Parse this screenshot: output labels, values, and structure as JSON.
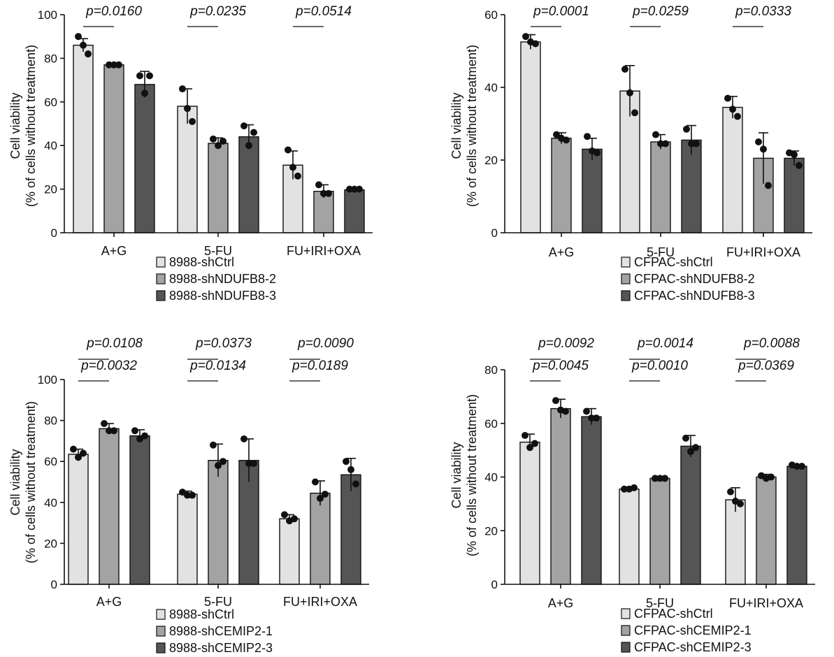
{
  "chart_data": [
    {
      "type": "bar",
      "ylabel": [
        "Cell viability",
        "(% of cells without treatment)"
      ],
      "ylim": [
        0,
        100
      ],
      "yticks": [
        0,
        20,
        40,
        60,
        80,
        100
      ],
      "categories": [
        "A+G",
        "5-FU",
        "FU+IRI+OXA"
      ],
      "series": [
        {
          "name": "8988-shCtrl",
          "color": "#e2e2e2",
          "values": [
            86,
            58,
            31
          ],
          "sd": [
            3,
            8,
            6.5
          ],
          "points": [
            [
              90,
              86,
              82
            ],
            [
              66,
              57,
              51
            ],
            [
              38,
              30,
              26
            ]
          ]
        },
        {
          "name": "8988-shNDUFB8-2",
          "color": "#a3a3a3",
          "values": [
            77,
            41,
            19
          ],
          "sd": [
            0.5,
            2.5,
            3
          ],
          "points": [
            [
              77,
              77,
              77
            ],
            [
              43,
              40,
              42
            ],
            [
              22,
              18,
              18
            ]
          ]
        },
        {
          "name": "8988-shNDUFB8-3",
          "color": "#555555",
          "values": [
            68,
            44,
            19.7
          ],
          "sd": [
            6,
            5.5,
            0.5
          ],
          "points": [
            [
              72,
              64,
              72
            ],
            [
              49,
              40,
              46
            ],
            [
              20,
              20,
              20
            ]
          ]
        }
      ],
      "annotations": [
        {
          "category": "A+G",
          "lines": [
            "p=0.0160"
          ]
        },
        {
          "category": "5-FU",
          "lines": [
            "p=0.0235"
          ]
        },
        {
          "category": "FU+IRI+OXA",
          "lines": [
            "p=0.0514"
          ]
        }
      ]
    },
    {
      "type": "bar",
      "ylabel": [
        "Cell viability",
        "(% of cells without treatment)"
      ],
      "ylim": [
        0,
        60
      ],
      "yticks": [
        0,
        20,
        40,
        60
      ],
      "categories": [
        "A+G",
        "5-FU",
        "FU+IRI+OXA"
      ],
      "series": [
        {
          "name": "CFPAC-shCtrl",
          "color": "#e2e2e2",
          "values": [
            52.5,
            39,
            34.5
          ],
          "sd": [
            2,
            7,
            3
          ],
          "points": [
            [
              54,
              52.5,
              52
            ],
            [
              45,
              38.5,
              33
            ],
            [
              37,
              34,
              32
            ]
          ]
        },
        {
          "name": "CFPAC-shNDUFB8-2",
          "color": "#a3a3a3",
          "values": [
            26,
            25,
            20.5
          ],
          "sd": [
            1.5,
            2,
            7
          ],
          "points": [
            [
              27,
              26,
              25.5
            ],
            [
              27,
              24.5,
              24.5
            ],
            [
              25,
              23,
              13
            ]
          ]
        },
        {
          "name": "CFPAC-shNDUFB8-3",
          "color": "#555555",
          "values": [
            23,
            25.5,
            20.5
          ],
          "sd": [
            3,
            4,
            2
          ],
          "points": [
            [
              26.5,
              22.5,
              22
            ],
            [
              28.5,
              24.5,
              24.5
            ],
            [
              22,
              21.5,
              18.5
            ]
          ]
        }
      ],
      "annotations": [
        {
          "category": "A+G",
          "lines": [
            "p=0.0001"
          ]
        },
        {
          "category": "5-FU",
          "lines": [
            "p=0.0259"
          ]
        },
        {
          "category": "FU+IRI+OXA",
          "lines": [
            "p=0.0333"
          ]
        }
      ]
    },
    {
      "type": "bar",
      "ylabel": [
        "Cell viability",
        "(% of cells without treatment)"
      ],
      "ylim": [
        0,
        100
      ],
      "yticks": [
        0,
        20,
        40,
        60,
        80,
        100
      ],
      "categories": [
        "A+G",
        "5-FU",
        "FU+IRI+OXA"
      ],
      "series": [
        {
          "name": "8988-shCtrl",
          "color": "#e2e2e2",
          "values": [
            63.5,
            44,
            32
          ],
          "sd": [
            2.5,
            1.5,
            2
          ],
          "points": [
            [
              66,
              62,
              64
            ],
            [
              45,
              43.5,
              43.5
            ],
            [
              34,
              31,
              32
            ]
          ]
        },
        {
          "name": "8988-shCEMIP2-1",
          "color": "#a3a3a3",
          "values": [
            76,
            60.5,
            44.5
          ],
          "sd": [
            2.5,
            8,
            6
          ],
          "points": [
            [
              78.5,
              75,
              75
            ],
            [
              68,
              58,
              60
            ],
            [
              50,
              42,
              44
            ]
          ]
        },
        {
          "name": "8988-shCEMIP2-3",
          "color": "#555555",
          "values": [
            72.5,
            60.5,
            53.5
          ],
          "sd": [
            3,
            10.5,
            8
          ],
          "points": [
            [
              75,
              71,
              72.5
            ],
            [
              71,
              59,
              59
            ],
            [
              60,
              56,
              49
            ]
          ]
        }
      ],
      "annotations": [
        {
          "category": "A+G",
          "lines": [
            "p=0.0108",
            "p=0.0032"
          ]
        },
        {
          "category": "5-FU",
          "lines": [
            "p=0.0373",
            "p=0.0134"
          ]
        },
        {
          "category": "FU+IRI+OXA",
          "lines": [
            "p=0.0090",
            "p=0.0189"
          ]
        }
      ]
    },
    {
      "type": "bar",
      "ylabel": [
        "Cell viability",
        "(% of cells without treatment)"
      ],
      "ylim": [
        0,
        80
      ],
      "yticks": [
        0,
        20,
        40,
        60,
        80
      ],
      "categories": [
        "A+G",
        "5-FU",
        "FU+IRI+OXA"
      ],
      "series": [
        {
          "name": "CFPAC-shCtrl",
          "color": "#e2e2e2",
          "values": [
            53,
            35.5,
            31.5
          ],
          "sd": [
            3,
            0.5,
            4.5
          ],
          "points": [
            [
              55.5,
              51,
              52.5
            ],
            [
              35.5,
              35.5,
              36
            ],
            [
              34.5,
              31,
              30
            ]
          ]
        },
        {
          "name": "CFPAC-shCEMIP2-1",
          "color": "#a3a3a3",
          "values": [
            65.5,
            39.5,
            40
          ],
          "sd": [
            3.5,
            0.3,
            1
          ],
          "points": [
            [
              68.5,
              65,
              64.5
            ],
            [
              39.5,
              39.5,
              39.5
            ],
            [
              40.5,
              39.5,
              40
            ]
          ]
        },
        {
          "name": "CFPAC-shCEMIP2-3",
          "color": "#555555",
          "values": [
            62.5,
            51.5,
            44
          ],
          "sd": [
            3,
            4,
            0.5
          ],
          "points": [
            [
              64.5,
              62,
              62
            ],
            [
              54.5,
              49.5,
              51
            ],
            [
              44.5,
              44,
              44
            ]
          ]
        }
      ],
      "annotations": [
        {
          "category": "A+G",
          "lines": [
            "p=0.0092",
            "p=0.0045"
          ]
        },
        {
          "category": "5-FU",
          "lines": [
            "p=0.0014",
            "p=0.0010"
          ]
        },
        {
          "category": "FU+IRI+OXA",
          "lines": [
            "p=0.0088",
            "p=0.0369"
          ]
        }
      ]
    }
  ]
}
